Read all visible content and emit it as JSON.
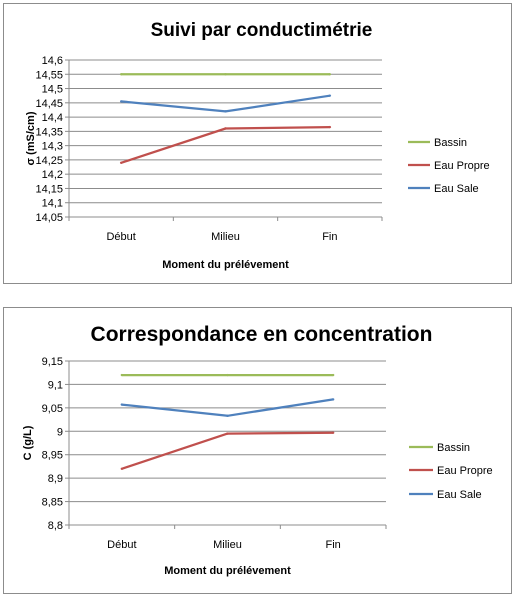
{
  "chart_data": [
    {
      "type": "line",
      "title": "Suivi par conductimétrie",
      "xlabel": "Moment du prélévement",
      "ylabel": "σ (mS/cm)",
      "categories": [
        "Début",
        "Milieu",
        "Fin"
      ],
      "ylim": [
        14.05,
        14.6
      ],
      "ytick_labels": [
        "14,6",
        "14,55",
        "14,5",
        "14,45",
        "14,4",
        "14,35",
        "14,3",
        "14,25",
        "14,2",
        "14,15",
        "14,1",
        "14,05"
      ],
      "grid": true,
      "legend_position": "right",
      "series": [
        {
          "name": "Bassin",
          "values": [
            14.55,
            14.55,
            14.55
          ],
          "color": "#9bbb59"
        },
        {
          "name": "Eau Propre",
          "values": [
            14.24,
            14.36,
            14.365
          ],
          "color": "#c0504d"
        },
        {
          "name": "Eau Sale",
          "values": [
            14.455,
            14.42,
            14.475
          ],
          "color": "#4f81bd"
        }
      ]
    },
    {
      "type": "line",
      "title": "Correspondance en concentration",
      "xlabel": "Moment du prélévement",
      "ylabel": "C (g/L)",
      "categories": [
        "Début",
        "Milieu",
        "Fin"
      ],
      "ylim": [
        8.8,
        9.15
      ],
      "ytick_labels": [
        "9,15",
        "9,1",
        "9,05",
        "9",
        "8,95",
        "8,9",
        "8,85",
        "8,8"
      ],
      "grid": true,
      "legend_position": "right",
      "series": [
        {
          "name": "Bassin",
          "values": [
            9.12,
            9.12,
            9.12
          ],
          "color": "#9bbb59"
        },
        {
          "name": "Eau Propre",
          "values": [
            8.92,
            8.995,
            8.997
          ],
          "color": "#c0504d"
        },
        {
          "name": "Eau Sale",
          "values": [
            9.057,
            9.033,
            9.068
          ],
          "color": "#4f81bd"
        }
      ]
    }
  ]
}
